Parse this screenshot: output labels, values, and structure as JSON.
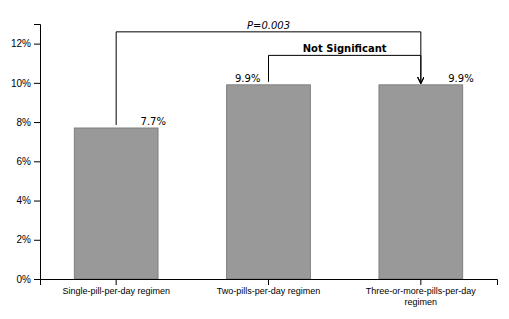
{
  "chart_data": {
    "type": "bar",
    "categories": [
      "Single-pill-per-day regimen",
      "Two-pills-per-day regimen",
      "Three-or-more-pills-per-day\nregimen"
    ],
    "values": [
      0.077,
      0.099,
      0.099
    ],
    "value_labels": [
      "7.7%",
      "9.9%",
      "9.9%"
    ],
    "data_labels": true,
    "color": "#999999",
    "ylim": [
      0,
      0.13
    ],
    "yticks": [
      {
        "value": 0,
        "label": "0%"
      },
      {
        "value": 0.02,
        "label": "2%"
      },
      {
        "value": 0.04,
        "label": "4%"
      },
      {
        "value": 0.06,
        "label": "6%"
      },
      {
        "value": 0.08,
        "label": "8%"
      },
      {
        "value": 0.1,
        "label": "10%"
      },
      {
        "value": 0.12,
        "label": "12%"
      }
    ],
    "grid": false,
    "annotations": [
      {
        "text": "P=0.003",
        "from": 0,
        "to": 2,
        "y": 0.126
      },
      {
        "text": "Not Significant",
        "from": 1,
        "to": 2,
        "y": 0.114
      }
    ]
  }
}
